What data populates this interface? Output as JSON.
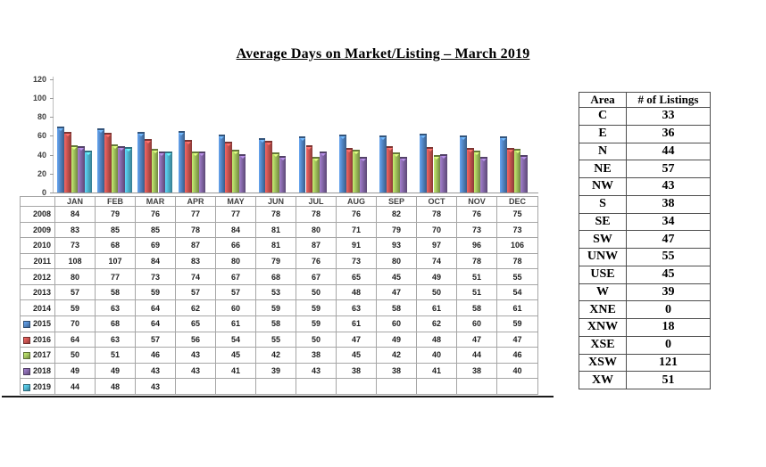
{
  "title": "Average Days on Market/Listing – March 2019",
  "chart_data": {
    "type": "bar",
    "title": "Average Days on Market/Listing – March 2019",
    "categories": [
      "JAN",
      "FEB",
      "MAR",
      "APR",
      "MAY",
      "JUN",
      "JUL",
      "AUG",
      "SEP",
      "OCT",
      "NOV",
      "DEC"
    ],
    "ylim": [
      0,
      120
    ],
    "yticks": [
      0,
      20,
      40,
      60,
      80,
      100,
      120
    ],
    "grid": false,
    "legend_position": "data-table-left-keys",
    "series": [
      {
        "name": "2008",
        "in_chart": false,
        "values": [
          84,
          79,
          76,
          77,
          77,
          78,
          78,
          76,
          82,
          78,
          76,
          75
        ]
      },
      {
        "name": "2009",
        "in_chart": false,
        "values": [
          83,
          85,
          85,
          78,
          84,
          81,
          80,
          71,
          79,
          70,
          73,
          73
        ]
      },
      {
        "name": "2010",
        "in_chart": false,
        "values": [
          73,
          68,
          69,
          87,
          66,
          81,
          87,
          91,
          93,
          97,
          96,
          106
        ]
      },
      {
        "name": "2011",
        "in_chart": false,
        "values": [
          108,
          107,
          84,
          83,
          80,
          79,
          76,
          73,
          80,
          74,
          78,
          78
        ]
      },
      {
        "name": "2012",
        "in_chart": false,
        "values": [
          80,
          77,
          73,
          74,
          67,
          68,
          67,
          65,
          45,
          49,
          51,
          55
        ]
      },
      {
        "name": "2013",
        "in_chart": false,
        "values": [
          57,
          58,
          59,
          57,
          57,
          53,
          50,
          48,
          47,
          50,
          51,
          54
        ]
      },
      {
        "name": "2014",
        "in_chart": false,
        "values": [
          59,
          63,
          64,
          62,
          60,
          59,
          59,
          63,
          58,
          61,
          58,
          61
        ]
      },
      {
        "name": "2015",
        "in_chart": true,
        "color": "#4F81BD",
        "values": [
          70,
          68,
          64,
          65,
          61,
          58,
          59,
          61,
          60,
          62,
          60,
          59
        ]
      },
      {
        "name": "2016",
        "in_chart": true,
        "color": "#C0504D",
        "values": [
          64,
          63,
          57,
          56,
          54,
          55,
          50,
          47,
          49,
          48,
          47,
          47
        ]
      },
      {
        "name": "2017",
        "in_chart": true,
        "color": "#9BBB59",
        "values": [
          50,
          51,
          46,
          43,
          45,
          42,
          38,
          45,
          42,
          40,
          44,
          46
        ]
      },
      {
        "name": "2018",
        "in_chart": true,
        "color": "#8064A2",
        "values": [
          49,
          49,
          43,
          43,
          41,
          39,
          43,
          38,
          38,
          41,
          38,
          40
        ]
      },
      {
        "name": "2019",
        "in_chart": true,
        "color": "#4BACC6",
        "values": [
          44,
          48,
          43,
          null,
          null,
          null,
          null,
          null,
          null,
          null,
          null,
          null
        ]
      }
    ]
  },
  "listings_table": {
    "headers": [
      "Area",
      "# of Listings"
    ],
    "rows": [
      {
        "area": "C",
        "count": "33"
      },
      {
        "area": "E",
        "count": "36"
      },
      {
        "area": "N",
        "count": "44"
      },
      {
        "area": "NE",
        "count": "57"
      },
      {
        "area": "NW",
        "count": "43"
      },
      {
        "area": "S",
        "count": "38"
      },
      {
        "area": "SE",
        "count": "34"
      },
      {
        "area": "SW",
        "count": "47"
      },
      {
        "area": "UNW",
        "count": "55"
      },
      {
        "area": "USE",
        "count": "45"
      },
      {
        "area": "W",
        "count": "39"
      },
      {
        "area": "XNE",
        "count": "0"
      },
      {
        "area": "XNW",
        "count": "18"
      },
      {
        "area": "XSE",
        "count": "0"
      },
      {
        "area": "XSW",
        "count": "121"
      },
      {
        "area": "XW",
        "count": "51"
      }
    ]
  }
}
